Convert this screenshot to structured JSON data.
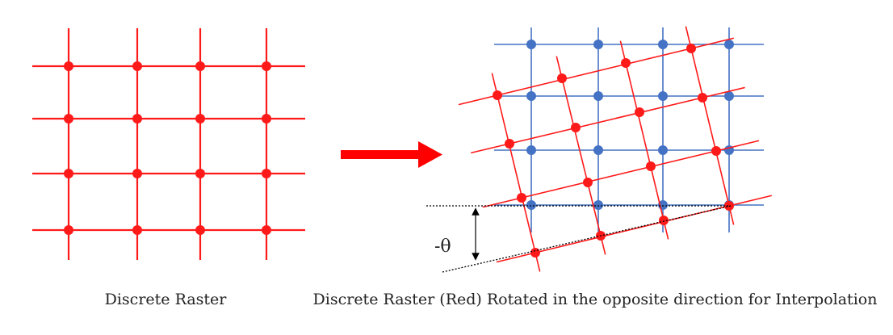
{
  "left_panel": {
    "caption": "Discrete Raster"
  },
  "right_panel": {
    "caption": "Discrete Raster (Red) Rotated in the opposite direction for Interpolation",
    "angle_label": "-θ"
  },
  "colors": {
    "raster_red": "#ff1a1a",
    "grid_blue": "#4472c4",
    "arrow_red": "#ff0000",
    "text": "#222222"
  },
  "icons": {
    "transform_arrow": "right-arrow-icon",
    "angle_marker": "double-headed-arrow-icon"
  }
}
